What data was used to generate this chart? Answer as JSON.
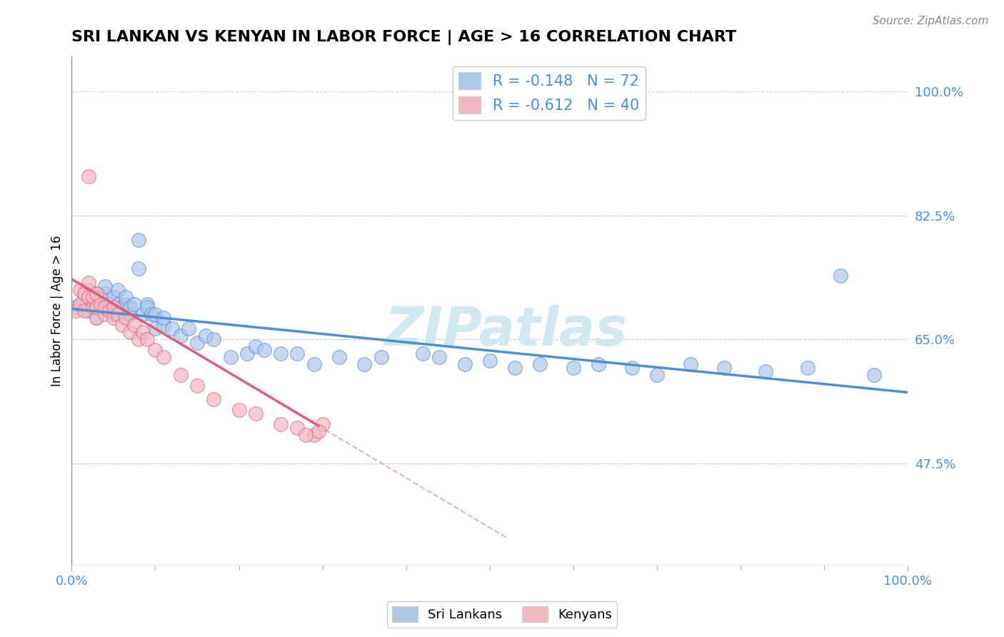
{
  "title": "SRI LANKAN VS KENYAN IN LABOR FORCE | AGE > 16 CORRELATION CHART",
  "source_text": "Source: ZipAtlas.com",
  "ylabel": "In Labor Force | Age > 16",
  "xlim": [
    0.0,
    1.0
  ],
  "ylim": [
    0.33,
    1.05
  ],
  "y_tick_labels_right": [
    "47.5%",
    "65.0%",
    "82.5%",
    "100.0%"
  ],
  "y_tick_values_right": [
    0.475,
    0.65,
    0.825,
    1.0
  ],
  "legend_label1": "R = -0.148   N = 72",
  "legend_label2": "R = -0.612   N = 40",
  "legend_color1": "#aec6e8",
  "legend_color2": "#f4b8c1",
  "scatter_color1": "#aec6e8",
  "scatter_color2": "#f4b8c1",
  "line_color1": "#4a90d9",
  "line_color2": "#e05c7a",
  "dashed_line_color": "#e8b0bb",
  "watermark_text": "ZIPatlas",
  "watermark_color": "#d0e8f0",
  "sri_lankans_x": [
    0.005,
    0.01,
    0.015,
    0.02,
    0.02,
    0.025,
    0.025,
    0.03,
    0.03,
    0.03,
    0.035,
    0.035,
    0.04,
    0.04,
    0.04,
    0.04,
    0.045,
    0.045,
    0.05,
    0.05,
    0.05,
    0.055,
    0.055,
    0.06,
    0.06,
    0.065,
    0.065,
    0.07,
    0.07,
    0.075,
    0.08,
    0.08,
    0.085,
    0.09,
    0.09,
    0.095,
    0.1,
    0.1,
    0.11,
    0.11,
    0.12,
    0.13,
    0.14,
    0.15,
    0.16,
    0.17,
    0.19,
    0.21,
    0.22,
    0.23,
    0.25,
    0.27,
    0.29,
    0.32,
    0.35,
    0.37,
    0.42,
    0.44,
    0.47,
    0.5,
    0.53,
    0.56,
    0.6,
    0.63,
    0.67,
    0.7,
    0.74,
    0.78,
    0.83,
    0.88,
    0.92,
    0.96
  ],
  "sri_lankans_y": [
    0.695,
    0.7,
    0.715,
    0.69,
    0.72,
    0.7,
    0.71,
    0.695,
    0.68,
    0.715,
    0.7,
    0.71,
    0.695,
    0.7,
    0.715,
    0.725,
    0.695,
    0.7,
    0.685,
    0.695,
    0.71,
    0.7,
    0.72,
    0.685,
    0.695,
    0.7,
    0.71,
    0.685,
    0.695,
    0.7,
    0.79,
    0.75,
    0.685,
    0.7,
    0.695,
    0.685,
    0.665,
    0.685,
    0.67,
    0.68,
    0.665,
    0.655,
    0.665,
    0.645,
    0.655,
    0.65,
    0.625,
    0.63,
    0.64,
    0.635,
    0.63,
    0.63,
    0.615,
    0.625,
    0.615,
    0.625,
    0.63,
    0.625,
    0.615,
    0.62,
    0.61,
    0.615,
    0.61,
    0.615,
    0.61,
    0.6,
    0.615,
    0.61,
    0.605,
    0.61,
    0.74,
    0.6
  ],
  "kenyans_x": [
    0.005,
    0.01,
    0.01,
    0.015,
    0.015,
    0.02,
    0.02,
    0.02,
    0.025,
    0.025,
    0.03,
    0.03,
    0.03,
    0.035,
    0.04,
    0.04,
    0.045,
    0.05,
    0.05,
    0.055,
    0.06,
    0.065,
    0.07,
    0.075,
    0.08,
    0.085,
    0.09,
    0.1,
    0.11,
    0.13,
    0.15,
    0.17,
    0.2,
    0.22,
    0.25,
    0.27,
    0.29,
    0.3,
    0.295,
    0.28
  ],
  "kenyans_y": [
    0.69,
    0.7,
    0.72,
    0.69,
    0.715,
    0.88,
    0.71,
    0.73,
    0.695,
    0.71,
    0.68,
    0.695,
    0.715,
    0.7,
    0.685,
    0.695,
    0.69,
    0.68,
    0.695,
    0.685,
    0.67,
    0.68,
    0.66,
    0.67,
    0.65,
    0.66,
    0.65,
    0.635,
    0.625,
    0.6,
    0.585,
    0.565,
    0.55,
    0.545,
    0.53,
    0.525,
    0.515,
    0.53,
    0.52,
    0.515
  ],
  "sri_lankans_trend_x": [
    0.0,
    1.0
  ],
  "sri_lankans_trend_y": [
    0.693,
    0.575
  ],
  "kenyans_trend_x": [
    0.0,
    0.295
  ],
  "kenyans_trend_y": [
    0.735,
    0.528
  ],
  "dashed_line_x": [
    0.295,
    0.52
  ],
  "dashed_line_y": [
    0.528,
    0.37
  ]
}
